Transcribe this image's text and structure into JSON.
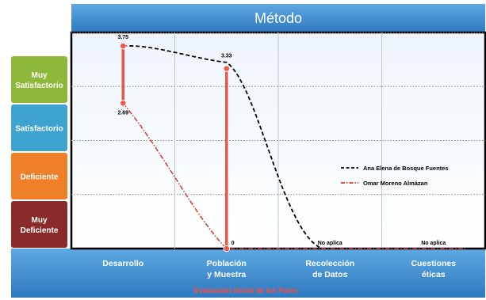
{
  "chart_data": {
    "type": "line",
    "title": "Método",
    "xlabel": "Evaluación Inicial de los Pares",
    "ylabel": "",
    "categories": [
      [
        "Desarrollo"
      ],
      [
        "Población",
        "y Muestra"
      ],
      [
        "Recolección",
        "de Datos"
      ],
      [
        "Cuestiones",
        "éticas"
      ]
    ],
    "ylim": [
      0,
      4
    ],
    "y_bands": [
      {
        "label": [
          "Muy",
          "Deficiente"
        ],
        "color": "#8b2a2a"
      },
      {
        "label": [
          "Deficiente"
        ],
        "color": "#f07f2a"
      },
      {
        "label": [
          "Satisfactorio"
        ],
        "color": "#3fa3cf"
      },
      {
        "label": [
          "Muy",
          "Satisfactorio"
        ],
        "color": "#8db83a"
      }
    ],
    "series": [
      {
        "name": "Ana Elena de Bosque Fuentes",
        "color": "#000000",
        "dash": "dashed",
        "values": [
          3.75,
          3.33,
          null,
          null
        ]
      },
      {
        "name": "Omar Moreno Almázan",
        "color": "#d9352b",
        "dash": "dashdot",
        "values": [
          2.69,
          0,
          null,
          null
        ]
      }
    ],
    "data_labels": [
      {
        "category": 0,
        "value": 3.75,
        "text": "3.75"
      },
      {
        "category": 0,
        "value": 2.69,
        "text": "2.69"
      },
      {
        "category": 1,
        "value": 3.33,
        "text": "3.33"
      },
      {
        "category": 1,
        "value": 0,
        "text": "0"
      },
      {
        "category": 2,
        "value": 0,
        "text": "No aplica"
      },
      {
        "category": 3,
        "value": 0,
        "text": "No aplica"
      }
    ],
    "grid": true,
    "legend": "right"
  }
}
